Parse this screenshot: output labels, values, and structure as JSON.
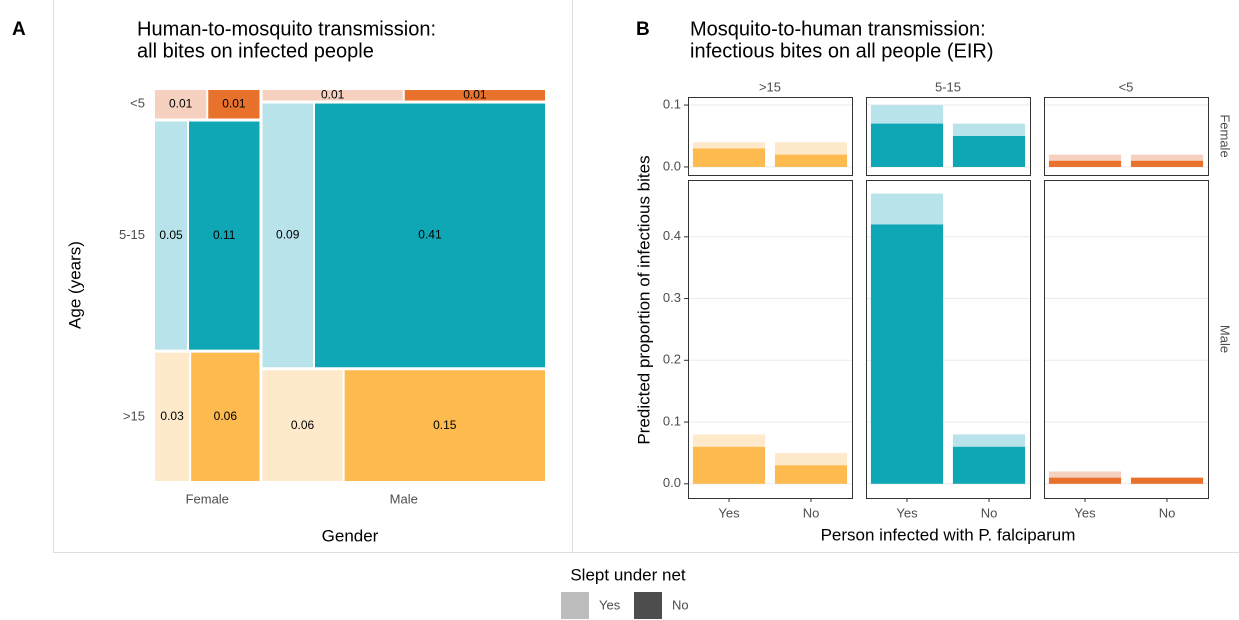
{
  "chart_data": [
    {
      "type": "mosaic",
      "panel_label": "A",
      "title": [
        "Human-to-mosquito transmission:",
        "all bites on infected people"
      ],
      "x_label": "Gender",
      "y_label": "Age (years)",
      "categories": [
        "Female",
        "Male"
      ],
      "age_groups": [
        "<5",
        "5-15",
        ">15"
      ],
      "cells": [
        [
          [
            0.01,
            0.01
          ],
          [
            0.05,
            0.11
          ],
          [
            0.03,
            0.06
          ]
        ],
        [
          [
            0.01,
            0.01
          ],
          [
            0.09,
            0.41
          ],
          [
            0.06,
            0.15
          ]
        ]
      ],
      "colors": [
        {
          "light": "#F6D1BF",
          "dark": "#E8712C"
        },
        {
          "light": "#B8E3EA",
          "dark": "#0FA6B5"
        },
        {
          "light": "#FEEACB",
          "dark": "#FDBB4F"
        }
      ]
    },
    {
      "type": "faceted_bar",
      "panel_label": "B",
      "title": [
        "Mosquito-to-human transmission:",
        "infectious bites on all people (EIR)"
      ],
      "x_label": "Person infected with P. falciparum",
      "y_label": "Predicted proportion of infectious bites",
      "categories": [
        "Yes",
        "No"
      ],
      "facet_cols": [
        ">15",
        "5-15",
        "<5"
      ],
      "facet_colors": [
        {
          "light": "#FEEACB",
          "dark": "#FDBB4F"
        },
        {
          "light": "#B8E3EA",
          "dark": "#0FA6B5"
        },
        {
          "light": "#F6D1BF",
          "dark": "#E8712C"
        }
      ],
      "rows": [
        {
          "label": "Female",
          "ylim": [
            -0.013,
            0.113
          ],
          "yticks": [
            {
              "value": 0,
              "label": "0.0"
            },
            0.1
          ],
          "facets": [
            {
              "not_under_net": [
                0.03,
                0.02
              ],
              "under_net": [
                0.01,
                0.02
              ]
            },
            {
              "not_under_net": [
                0.07,
                0.05
              ],
              "under_net": [
                0.03,
                0.02
              ]
            },
            {
              "not_under_net": [
                0.01,
                0.01
              ],
              "under_net": [
                0.01,
                0.01
              ]
            }
          ]
        },
        {
          "label": "Male",
          "ylim": [
            -0.023,
            0.492
          ],
          "yticks": [
            {
              "value": 0,
              "label": "0.0"
            },
            0.1,
            0.2,
            0.3,
            0.4
          ],
          "facets": [
            {
              "not_under_net": [
                0.06,
                0.03
              ],
              "under_net": [
                0.02,
                0.02
              ]
            },
            {
              "not_under_net": [
                0.42,
                0.06
              ],
              "under_net": [
                0.05,
                0.02
              ]
            },
            {
              "not_under_net": [
                0.01,
                0.01
              ],
              "under_net": [
                0.01,
                0
              ]
            }
          ]
        }
      ],
      "legend": {
        "title": "Slept under net",
        "entries": [
          {
            "name": "Yes",
            "color": "#BDBDBD"
          },
          {
            "name": "No",
            "color": "#4D4D4D"
          }
        ]
      }
    }
  ]
}
